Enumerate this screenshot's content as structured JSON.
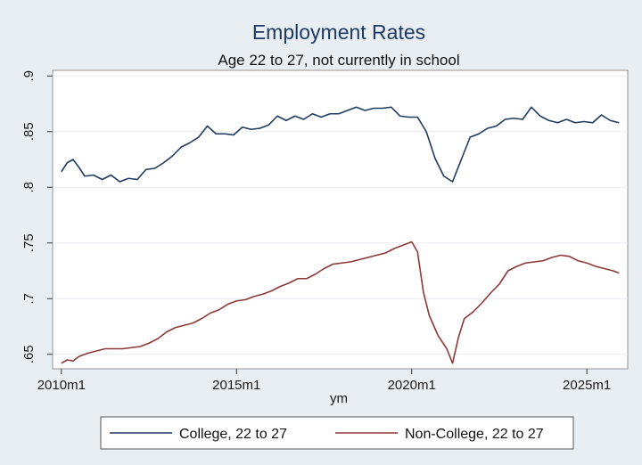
{
  "chart_data": {
    "type": "line",
    "title": "Employment Rates",
    "subtitle": "Age 22 to 27, not currently in school",
    "xlabel": "ym",
    "ylabel": "",
    "xlim": [
      "2009m10",
      "2026m3"
    ],
    "ylim": [
      0.637,
      0.905
    ],
    "x_ticks": [
      "2010m1",
      "2015m1",
      "2020m1",
      "2025m1"
    ],
    "y_ticks": [
      ".65",
      ".7",
      ".75",
      ".8",
      ".85",
      ".9"
    ],
    "y_tick_values": [
      0.65,
      0.7,
      0.75,
      0.8,
      0.85,
      0.9
    ],
    "grid": true,
    "legend_position": "bottom",
    "series": [
      {
        "name": "College, 22 to 27",
        "color": "#1f3a5f",
        "points": [
          [
            "2010m1",
            0.814
          ],
          [
            "2010m3",
            0.822
          ],
          [
            "2010m5",
            0.825
          ],
          [
            "2010m7",
            0.818
          ],
          [
            "2010m9",
            0.81
          ],
          [
            "2010m12",
            0.811
          ],
          [
            "2011m3",
            0.807
          ],
          [
            "2011m6",
            0.811
          ],
          [
            "2011m9",
            0.805
          ],
          [
            "2011m12",
            0.808
          ],
          [
            "2012m3",
            0.807
          ],
          [
            "2012m6",
            0.816
          ],
          [
            "2012m9",
            0.817
          ],
          [
            "2012m12",
            0.822
          ],
          [
            "2013m3",
            0.828
          ],
          [
            "2013m6",
            0.836
          ],
          [
            "2013m9",
            0.84
          ],
          [
            "2013m12",
            0.845
          ],
          [
            "2014m3",
            0.855
          ],
          [
            "2014m6",
            0.848
          ],
          [
            "2014m9",
            0.848
          ],
          [
            "2014m12",
            0.847
          ],
          [
            "2015m3",
            0.854
          ],
          [
            "2015m6",
            0.852
          ],
          [
            "2015m9",
            0.853
          ],
          [
            "2015m12",
            0.856
          ],
          [
            "2016m3",
            0.864
          ],
          [
            "2016m6",
            0.86
          ],
          [
            "2016m9",
            0.864
          ],
          [
            "2016m12",
            0.861
          ],
          [
            "2017m3",
            0.866
          ],
          [
            "2017m6",
            0.863
          ],
          [
            "2017m9",
            0.866
          ],
          [
            "2017m12",
            0.866
          ],
          [
            "2018m3",
            0.869
          ],
          [
            "2018m6",
            0.872
          ],
          [
            "2018m9",
            0.869
          ],
          [
            "2018m12",
            0.871
          ],
          [
            "2019m3",
            0.871
          ],
          [
            "2019m6",
            0.872
          ],
          [
            "2019m9",
            0.864
          ],
          [
            "2019m12",
            0.863
          ],
          [
            "2020m3",
            0.863
          ],
          [
            "2020m6",
            0.85
          ],
          [
            "2020m9",
            0.826
          ],
          [
            "2020m12",
            0.81
          ],
          [
            "2021m3",
            0.805
          ],
          [
            "2021m6",
            0.825
          ],
          [
            "2021m9",
            0.845
          ],
          [
            "2021m12",
            0.848
          ],
          [
            "2022m3",
            0.853
          ],
          [
            "2022m6",
            0.855
          ],
          [
            "2022m9",
            0.861
          ],
          [
            "2022m12",
            0.862
          ],
          [
            "2023m3",
            0.861
          ],
          [
            "2023m6",
            0.872
          ],
          [
            "2023m9",
            0.864
          ],
          [
            "2023m12",
            0.86
          ],
          [
            "2024m3",
            0.858
          ],
          [
            "2024m6",
            0.861
          ],
          [
            "2024m9",
            0.858
          ],
          [
            "2024m12",
            0.859
          ],
          [
            "2025m3",
            0.858
          ],
          [
            "2025m6",
            0.865
          ],
          [
            "2025m9",
            0.86
          ],
          [
            "2025m12",
            0.858
          ]
        ]
      },
      {
        "name": "Non-College, 22 to 27",
        "color": "#8b3a36",
        "points": [
          [
            "2010m1",
            0.642
          ],
          [
            "2010m3",
            0.645
          ],
          [
            "2010m5",
            0.644
          ],
          [
            "2010m7",
            0.648
          ],
          [
            "2010m10",
            0.651
          ],
          [
            "2011m1",
            0.653
          ],
          [
            "2011m4",
            0.655
          ],
          [
            "2011m7",
            0.655
          ],
          [
            "2011m10",
            0.655
          ],
          [
            "2012m1",
            0.656
          ],
          [
            "2012m4",
            0.657
          ],
          [
            "2012m7",
            0.66
          ],
          [
            "2012m10",
            0.664
          ],
          [
            "2013m1",
            0.67
          ],
          [
            "2013m4",
            0.674
          ],
          [
            "2013m7",
            0.676
          ],
          [
            "2013m10",
            0.678
          ],
          [
            "2014m1",
            0.682
          ],
          [
            "2014m4",
            0.687
          ],
          [
            "2014m7",
            0.69
          ],
          [
            "2014m10",
            0.695
          ],
          [
            "2015m1",
            0.698
          ],
          [
            "2015m4",
            0.699
          ],
          [
            "2015m7",
            0.702
          ],
          [
            "2015m10",
            0.704
          ],
          [
            "2016m1",
            0.707
          ],
          [
            "2016m4",
            0.711
          ],
          [
            "2016m7",
            0.714
          ],
          [
            "2016m10",
            0.718
          ],
          [
            "2017m1",
            0.718
          ],
          [
            "2017m4",
            0.722
          ],
          [
            "2017m7",
            0.727
          ],
          [
            "2017m10",
            0.731
          ],
          [
            "2018m1",
            0.732
          ],
          [
            "2018m4",
            0.733
          ],
          [
            "2018m7",
            0.735
          ],
          [
            "2018m10",
            0.737
          ],
          [
            "2019m1",
            0.739
          ],
          [
            "2019m4",
            0.741
          ],
          [
            "2019m7",
            0.745
          ],
          [
            "2019m10",
            0.748
          ],
          [
            "2020m1",
            0.751
          ],
          [
            "2020m3",
            0.742
          ],
          [
            "2020m5",
            0.706
          ],
          [
            "2020m7",
            0.685
          ],
          [
            "2020m10",
            0.667
          ],
          [
            "2021m1",
            0.655
          ],
          [
            "2021m3",
            0.642
          ],
          [
            "2021m5",
            0.665
          ],
          [
            "2021m7",
            0.682
          ],
          [
            "2021m10",
            0.688
          ],
          [
            "2022m1",
            0.696
          ],
          [
            "2022m4",
            0.705
          ],
          [
            "2022m7",
            0.713
          ],
          [
            "2022m10",
            0.725
          ],
          [
            "2023m1",
            0.729
          ],
          [
            "2023m4",
            0.732
          ],
          [
            "2023m7",
            0.733
          ],
          [
            "2023m10",
            0.734
          ],
          [
            "2024m1",
            0.737
          ],
          [
            "2024m4",
            0.739
          ],
          [
            "2024m7",
            0.738
          ],
          [
            "2024m10",
            0.734
          ],
          [
            "2025m1",
            0.732
          ],
          [
            "2025m4",
            0.729
          ],
          [
            "2025m7",
            0.727
          ],
          [
            "2025m10",
            0.725
          ],
          [
            "2025m12",
            0.723
          ]
        ]
      }
    ]
  }
}
